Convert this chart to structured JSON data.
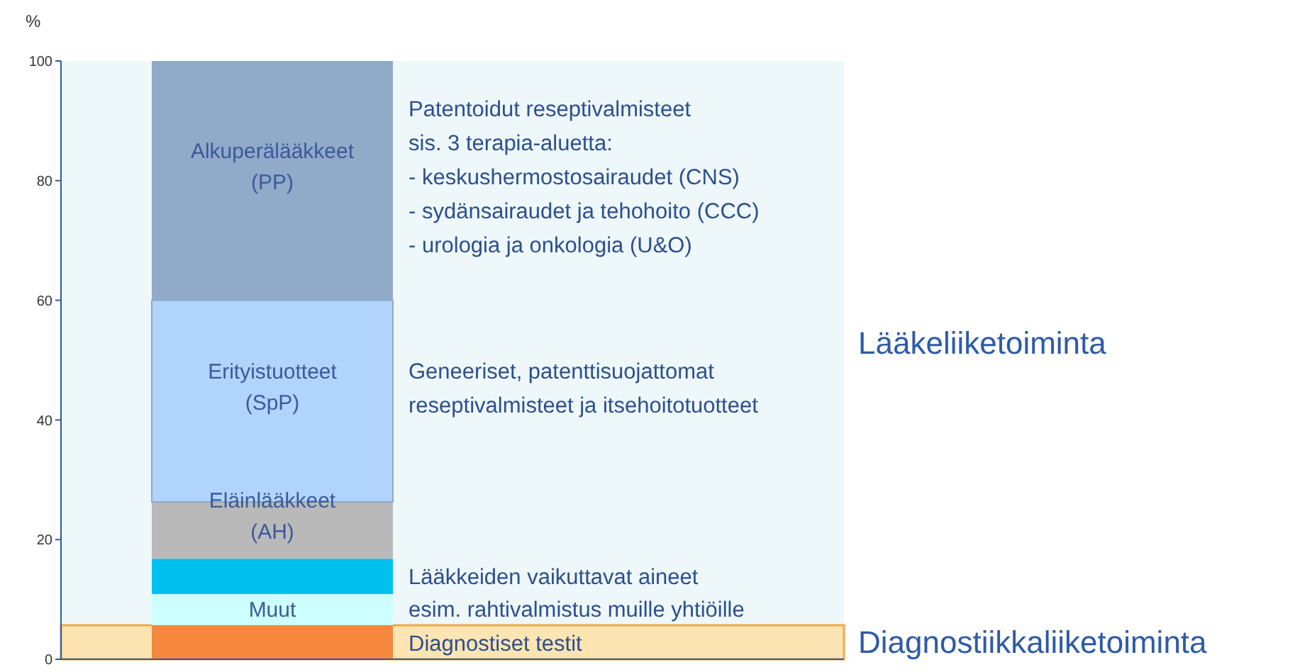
{
  "chart_data": {
    "type": "bar",
    "stacked": true,
    "ylabel": "%",
    "categories": [
      null
    ],
    "series": [
      {
        "color": "#f5883c",
        "values": [
          5.7
        ]
      },
      {
        "name": "Muut",
        "color": "#ccfffd",
        "values": [
          5.2
        ]
      },
      {
        "color": "#00c0f0",
        "values": [
          5.9
        ]
      },
      {
        "name": "Eläinlääkkeet (AH)",
        "color": "#b9b9b9",
        "values": [
          9.5
        ]
      },
      {
        "name": "Erityistuotteet (SpP)",
        "color": "#b0d4fb",
        "values": [
          33.7
        ]
      },
      {
        "name": "Alkuperälääkkeet (PP)",
        "color": "#91aac9",
        "values": [
          40
        ]
      }
    ],
    "ylim": [
      0,
      100
    ],
    "yticks": [
      0,
      20,
      40,
      60,
      80,
      100
    ],
    "bands": [
      {
        "axis": "y",
        "from": 5.7,
        "to": 100,
        "label": "Lääkeliiketoiminta",
        "color": "#eef8fb"
      },
      {
        "axis": "y",
        "from": 0,
        "to": 5.7,
        "label": "Diagnostiikkaliiketoiminta",
        "color": "#fde4b3"
      }
    ],
    "annotations": [
      "Patentoidut reseptivalmisteet\nsis. 3 terapia-aluetta:\n- keskushermostosairaudet (CNS)\n- sydänsairaudet ja tehohoito (CCC)\n- urologia ja onkologia (U&O)",
      "Geneeriset, patenttisuojattomat\nreseptivalmisteet ja itsehoitotuotteet",
      "Lääkkeiden vaikuttavat aineet",
      "esim. rahtivalmistus muille yhtiöille",
      "Diagnostiset testit"
    ]
  }
}
